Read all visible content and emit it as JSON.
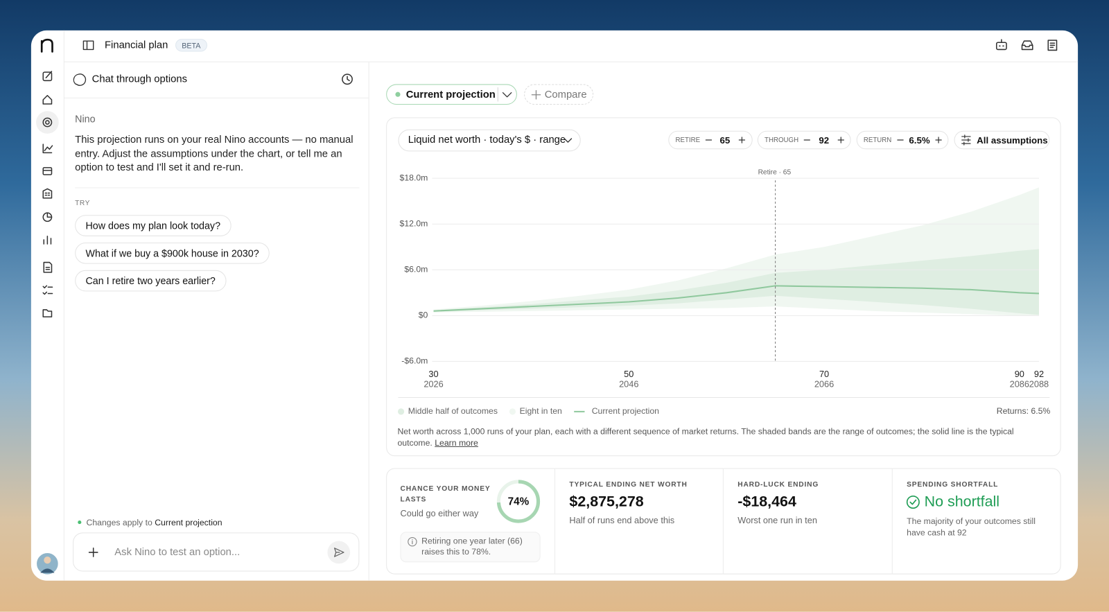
{
  "header": {
    "title": "Financial plan",
    "badge": "BETA"
  },
  "chat": {
    "title": "Chat through options",
    "sender": "Nino",
    "message": "This projection runs on your real Nino accounts — no manual entry. Adjust the assumptions under the chart, or tell me an option to test and I'll set it and re-run.",
    "try_label": "TRY",
    "suggestions": [
      "How does my plan look today?",
      "What if we buy a $900k house in 2030?",
      "Can I retire two years earlier?"
    ],
    "status_prefix": "Changes apply to",
    "status_target": "Current projection",
    "input_placeholder": "Ask Nino to test an option..."
  },
  "projection": {
    "tab": "Current projection",
    "compare": "Compare",
    "selector": "Liquid net worth · today's $ · range",
    "controls": [
      {
        "label": "RETIRE",
        "value": 65
      },
      {
        "label": "THROUGH",
        "value": 92
      },
      {
        "label": "RETURN",
        "value": "6.5%"
      }
    ],
    "all_assumptions": "All assumptions"
  },
  "chart_data": {
    "type": "line",
    "x": [
      30,
      35,
      40,
      45,
      50,
      55,
      60,
      65,
      70,
      75,
      80,
      85,
      90,
      92
    ],
    "xlim": [
      30,
      92
    ],
    "xticks": [
      30,
      50,
      70,
      90,
      92
    ],
    "xtick_years": [
      2026,
      2046,
      2066,
      2086,
      2088
    ],
    "ylim": [
      -6,
      18
    ],
    "yticks": [
      {
        "value": -6,
        "label": "-$6.0m"
      },
      {
        "value": 0,
        "label": "$0"
      },
      {
        "value": 6,
        "label": "$6.0m"
      },
      {
        "value": 12,
        "label": "$12.0m"
      },
      {
        "value": 18,
        "label": "$18.0m"
      }
    ],
    "grid": true,
    "annotation": {
      "x": 65,
      "label": "Retire · 65"
    },
    "series": [
      {
        "name": "Middle half of outcomes",
        "color": "#dfeee2",
        "low": [
          0.5,
          0.7,
          0.9,
          1.1,
          1.3,
          1.6,
          2.1,
          2.6,
          2.2,
          1.8,
          1.4,
          0.9,
          0.3,
          0.1
        ],
        "high": [
          0.7,
          1.1,
          1.5,
          2.0,
          2.5,
          3.3,
          4.3,
          5.6,
          6.0,
          6.6,
          7.2,
          7.8,
          8.5,
          8.7
        ]
      },
      {
        "name": "Eight in ten",
        "color": "#f0f7f1",
        "low": [
          0.4,
          0.5,
          0.6,
          0.7,
          0.8,
          0.9,
          1.0,
          1.2,
          0.9,
          0.6,
          0.4,
          0.2,
          0.0,
          -0.02
        ],
        "high": [
          0.8,
          1.3,
          1.9,
          2.6,
          3.4,
          4.6,
          6.2,
          8.0,
          9.0,
          10.4,
          11.8,
          13.6,
          15.8,
          16.8
        ]
      },
      {
        "name": "Current projection",
        "color": "#8fc89d",
        "values": [
          0.6,
          0.9,
          1.2,
          1.5,
          1.8,
          2.3,
          3.0,
          3.9,
          3.8,
          3.7,
          3.6,
          3.4,
          3.0,
          2.9
        ]
      }
    ],
    "returns_label": "Returns: 6.5%",
    "caption": "Net worth across 1,000 runs of your plan, each with a different sequence of market returns. The shaded bands are the range of outcomes; the solid line is the typical outcome.",
    "caption_link": "Learn more"
  },
  "stats": [
    {
      "label": "CHANCE YOUR MONEY LASTS",
      "value": 74,
      "value_label": "74%",
      "note": "Could go either way",
      "tip": "Retiring one year later (66) raises this to 78%."
    },
    {
      "label": "TYPICAL ENDING NET WORTH",
      "value": "$2,875,278",
      "note": "Half of runs end above this"
    },
    {
      "label": "HARD-LUCK ENDING",
      "value": "-$18,464",
      "note": "Worst one run in ten"
    },
    {
      "label": "SPENDING SHORTFALL",
      "value": "No shortfall",
      "note": "The majority of your outcomes still have cash at 92"
    }
  ]
}
